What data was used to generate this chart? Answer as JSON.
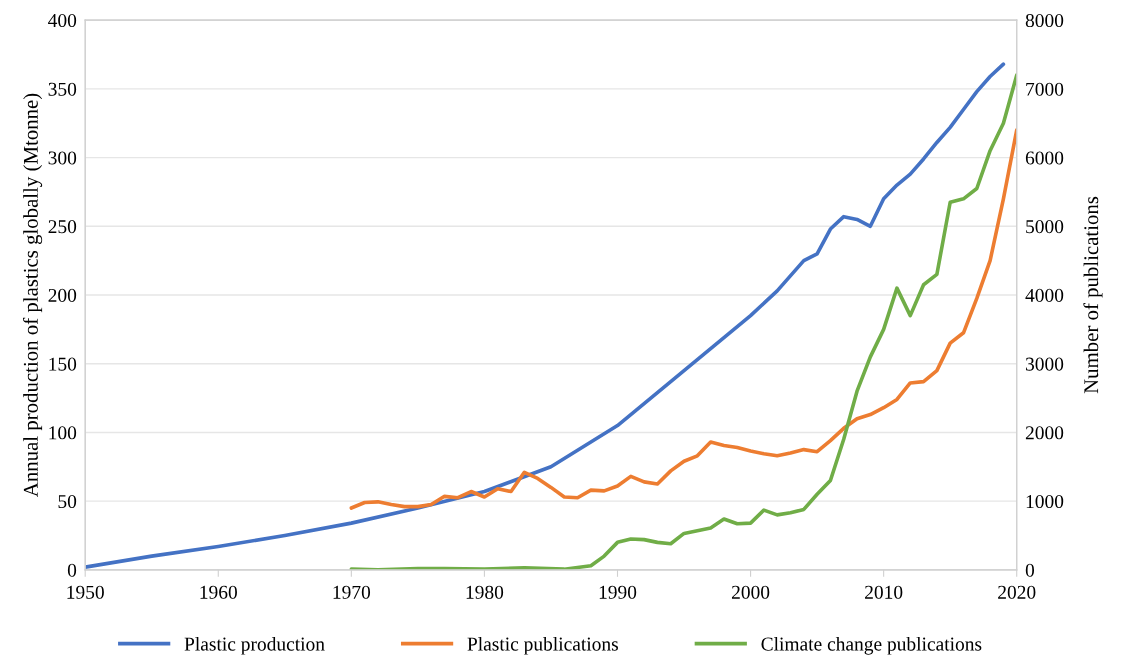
{
  "chart_data": {
    "type": "line",
    "xlabel": null,
    "ylabel": "Annual production of plastics globally (Mtonne)",
    "y2label": "Number of publications",
    "xlim": [
      1950,
      2020
    ],
    "xticks": [
      1950,
      1960,
      1970,
      1980,
      1990,
      2000,
      2010,
      2020
    ],
    "ylim": [
      0,
      400
    ],
    "yticks": [
      0,
      50,
      100,
      150,
      200,
      250,
      300,
      350,
      400
    ],
    "y2lim": [
      0,
      8000
    ],
    "y2ticks": [
      0,
      1000,
      2000,
      3000,
      4000,
      5000,
      6000,
      7000,
      8000
    ],
    "grid": "y",
    "legend": "bottom",
    "marker": "none",
    "line_style": "solid",
    "series": [
      {
        "name": "Plastic production",
        "color": "#4472c4",
        "x": [
          1950,
          1955,
          1960,
          1965,
          1970,
          1975,
          1980,
          1985,
          1990,
          1995,
          2000,
          2002,
          2004,
          2005,
          2006,
          2007,
          2008,
          2009,
          2010,
          2011,
          2012,
          2013,
          2014,
          2015,
          2016,
          2017,
          2018,
          2019
        ],
        "values": [
          2,
          10,
          17,
          25,
          34,
          45,
          57,
          75,
          105,
          145,
          185,
          203,
          225,
          230,
          248,
          257,
          255,
          250,
          270,
          280,
          288,
          299,
          311,
          322,
          335,
          348,
          359,
          368
        ]
      },
      {
        "name": "Plastic publications",
        "color": "#ed7d31",
        "axis": "y2",
        "x": [
          1970,
          1971,
          1972,
          1973,
          1974,
          1975,
          1976,
          1977,
          1978,
          1979,
          1980,
          1981,
          1982,
          1983,
          1984,
          1985,
          1986,
          1987,
          1988,
          1989,
          1990,
          1991,
          1992,
          1993,
          1994,
          1995,
          1996,
          1997,
          1998,
          1999,
          2000,
          2001,
          2002,
          2003,
          2004,
          2005,
          2006,
          2007,
          2008,
          2009,
          2010,
          2011,
          2012,
          2013,
          2014,
          2015,
          2016,
          2017,
          2018,
          2019,
          2020
        ],
        "values": [
          900,
          980,
          990,
          950,
          920,
          920,
          950,
          1070,
          1050,
          1140,
          1060,
          1180,
          1140,
          1420,
          1330,
          1200,
          1060,
          1050,
          1160,
          1150,
          1220,
          1360,
          1280,
          1250,
          1440,
          1580,
          1660,
          1860,
          1810,
          1780,
          1730,
          1690,
          1660,
          1700,
          1750,
          1720,
          1880,
          2060,
          2200,
          2260,
          2360,
          2480,
          2720,
          2740,
          2900,
          3300,
          3450,
          3950,
          4500,
          5400,
          6400
        ]
      },
      {
        "name": "Climate change publications",
        "color": "#70ad47",
        "axis": "y2",
        "x": [
          1970,
          1972,
          1975,
          1977,
          1980,
          1983,
          1986,
          1988,
          1989,
          1990,
          1991,
          1992,
          1993,
          1994,
          1995,
          1996,
          1997,
          1998,
          1999,
          2000,
          2001,
          2002,
          2003,
          2004,
          2005,
          2006,
          2007,
          2008,
          2009,
          2010,
          2011,
          2012,
          2013,
          2014,
          2015,
          2016,
          2017,
          2018,
          2019,
          2020
        ],
        "values": [
          10,
          0,
          20,
          20,
          10,
          30,
          10,
          60,
          200,
          400,
          450,
          440,
          400,
          380,
          530,
          570,
          610,
          740,
          670,
          680,
          870,
          800,
          830,
          880,
          1100,
          1300,
          1900,
          2600,
          3100,
          3500,
          4100,
          3700,
          4150,
          4300,
          5350,
          5400,
          5550,
          6100,
          6500,
          7200
        ]
      }
    ]
  }
}
